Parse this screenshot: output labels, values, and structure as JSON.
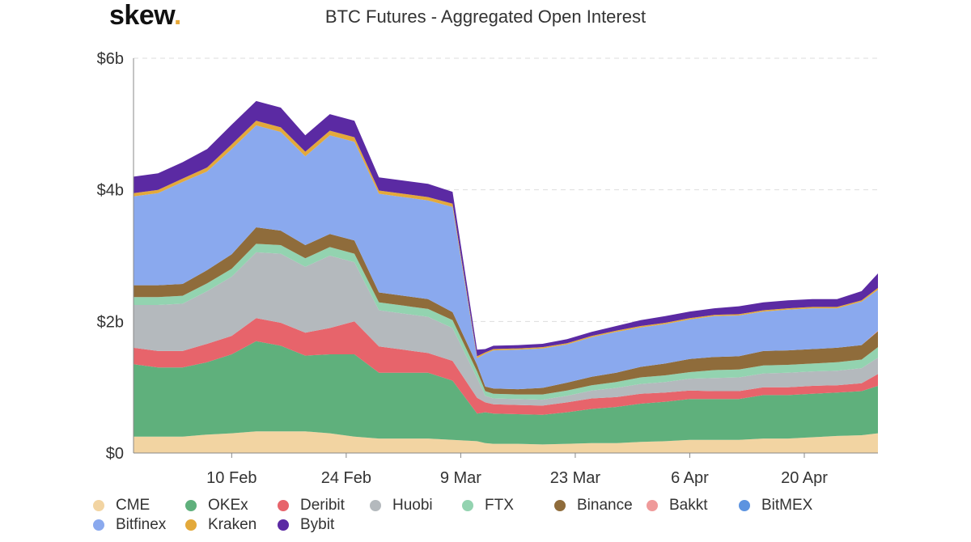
{
  "brand": {
    "name": "skew",
    "dot": "."
  },
  "chart_data": {
    "type": "area",
    "stacked": true,
    "title": "BTC Futures - Aggregated Open Interest",
    "xlabel": "",
    "ylabel": "",
    "y_ticks": [
      "$0",
      "$2b",
      "$4b",
      "$6b"
    ],
    "y_tick_values": [
      0,
      2,
      4,
      6
    ],
    "ylim": [
      0,
      6
    ],
    "y_unit": "billion USD",
    "x_ticks": [
      "10 Feb",
      "24 Feb",
      "9 Mar",
      "23 Mar",
      "6 Apr",
      "20 Apr"
    ],
    "x_tick_dates": [
      "2020-02-10",
      "2020-02-24",
      "2020-03-09",
      "2020-03-23",
      "2020-04-06",
      "2020-04-20"
    ],
    "grid": "horizontal dashed",
    "legend_position": "bottom",
    "x": [
      "2020-01-29",
      "2020-02-01",
      "2020-02-04",
      "2020-02-07",
      "2020-02-10",
      "2020-02-13",
      "2020-02-16",
      "2020-02-19",
      "2020-02-22",
      "2020-02-25",
      "2020-02-28",
      "2020-03-02",
      "2020-03-05",
      "2020-03-08",
      "2020-03-11",
      "2020-03-12",
      "2020-03-13",
      "2020-03-16",
      "2020-03-19",
      "2020-03-22",
      "2020-03-25",
      "2020-03-28",
      "2020-03-31",
      "2020-04-03",
      "2020-04-06",
      "2020-04-09",
      "2020-04-12",
      "2020-04-15",
      "2020-04-18",
      "2020-04-21",
      "2020-04-24",
      "2020-04-27",
      "2020-04-29"
    ],
    "series": [
      {
        "name": "CME",
        "color": "#f2d4a2",
        "values": [
          0.25,
          0.25,
          0.25,
          0.28,
          0.3,
          0.33,
          0.33,
          0.33,
          0.3,
          0.25,
          0.22,
          0.22,
          0.22,
          0.2,
          0.18,
          0.15,
          0.14,
          0.14,
          0.13,
          0.14,
          0.15,
          0.15,
          0.17,
          0.18,
          0.2,
          0.2,
          0.2,
          0.22,
          0.22,
          0.24,
          0.26,
          0.27,
          0.3
        ]
      },
      {
        "name": "OKEx",
        "color": "#5fb07c",
        "values": [
          1.1,
          1.05,
          1.05,
          1.1,
          1.2,
          1.37,
          1.3,
          1.15,
          1.2,
          1.25,
          1.0,
          1.0,
          1.0,
          0.9,
          0.42,
          0.47,
          0.46,
          0.45,
          0.45,
          0.48,
          0.52,
          0.55,
          0.58,
          0.6,
          0.62,
          0.62,
          0.62,
          0.66,
          0.66,
          0.66,
          0.66,
          0.67,
          0.72
        ]
      },
      {
        "name": "Deribit",
        "color": "#e7646b",
        "values": [
          0.25,
          0.25,
          0.25,
          0.28,
          0.28,
          0.35,
          0.35,
          0.35,
          0.4,
          0.5,
          0.4,
          0.35,
          0.3,
          0.3,
          0.24,
          0.15,
          0.14,
          0.14,
          0.14,
          0.15,
          0.16,
          0.15,
          0.15,
          0.14,
          0.13,
          0.12,
          0.12,
          0.12,
          0.12,
          0.12,
          0.11,
          0.12,
          0.18
        ]
      },
      {
        "name": "Huobi",
        "color": "#b4b9bd",
        "values": [
          0.65,
          0.7,
          0.72,
          0.8,
          0.9,
          1.0,
          1.05,
          1.0,
          1.1,
          0.9,
          0.55,
          0.55,
          0.55,
          0.5,
          0.3,
          0.1,
          0.09,
          0.09,
          0.09,
          0.1,
          0.12,
          0.14,
          0.15,
          0.16,
          0.18,
          0.2,
          0.21,
          0.21,
          0.22,
          0.22,
          0.22,
          0.23,
          0.25
        ]
      },
      {
        "name": "FTX",
        "color": "#93d3b0",
        "values": [
          0.12,
          0.12,
          0.12,
          0.12,
          0.12,
          0.13,
          0.13,
          0.13,
          0.13,
          0.13,
          0.12,
          0.12,
          0.12,
          0.12,
          0.1,
          0.07,
          0.07,
          0.07,
          0.08,
          0.08,
          0.08,
          0.09,
          0.1,
          0.1,
          0.1,
          0.12,
          0.12,
          0.12,
          0.12,
          0.12,
          0.13,
          0.13,
          0.16
        ]
      },
      {
        "name": "Binance",
        "color": "#8f6c3b",
        "values": [
          0.18,
          0.18,
          0.18,
          0.2,
          0.22,
          0.25,
          0.22,
          0.2,
          0.2,
          0.2,
          0.15,
          0.15,
          0.15,
          0.12,
          0.1,
          0.07,
          0.08,
          0.08,
          0.1,
          0.12,
          0.13,
          0.14,
          0.16,
          0.18,
          0.2,
          0.2,
          0.2,
          0.22,
          0.22,
          0.22,
          0.22,
          0.22,
          0.24
        ]
      },
      {
        "name": "Bakkt",
        "color": "#ef9a9a",
        "values": [
          0.0,
          0.0,
          0.0,
          0.0,
          0.0,
          0.0,
          0.0,
          0.0,
          0.0,
          0.0,
          0.0,
          0.0,
          0.0,
          0.0,
          0.0,
          0.0,
          0.0,
          0.0,
          0.0,
          0.0,
          0.0,
          0.0,
          0.0,
          0.0,
          0.0,
          0.0,
          0.0,
          0.0,
          0.0,
          0.0,
          0.0,
          0.0,
          0.01
        ]
      },
      {
        "name": "BitMEX",
        "color": "#5c93e0",
        "values": [
          0.0,
          0.0,
          0.0,
          0.0,
          0.0,
          0.0,
          0.0,
          0.0,
          0.0,
          0.0,
          0.0,
          0.0,
          0.0,
          0.0,
          0.0,
          0.0,
          0.0,
          0.0,
          0.0,
          0.0,
          0.0,
          0.0,
          0.0,
          0.0,
          0.0,
          0.0,
          0.0,
          0.0,
          0.0,
          0.0,
          0.0,
          0.0,
          0.0
        ]
      },
      {
        "name": "Bitfinex",
        "color": "#8aa9ee",
        "values": [
          1.35,
          1.4,
          1.55,
          1.5,
          1.6,
          1.55,
          1.5,
          1.35,
          1.5,
          1.5,
          1.5,
          1.5,
          1.5,
          1.6,
          0.1,
          0.5,
          0.58,
          0.6,
          0.6,
          0.58,
          0.6,
          0.62,
          0.6,
          0.6,
          0.6,
          0.62,
          0.62,
          0.6,
          0.62,
          0.62,
          0.6,
          0.66,
          0.62
        ]
      },
      {
        "name": "Kraken",
        "color": "#e3a93b",
        "values": [
          0.05,
          0.05,
          0.05,
          0.06,
          0.07,
          0.07,
          0.07,
          0.07,
          0.07,
          0.07,
          0.05,
          0.05,
          0.05,
          0.05,
          0.03,
          0.02,
          0.02,
          0.02,
          0.02,
          0.02,
          0.02,
          0.02,
          0.02,
          0.02,
          0.02,
          0.02,
          0.02,
          0.02,
          0.02,
          0.02,
          0.02,
          0.02,
          0.03
        ]
      },
      {
        "name": "Bybit",
        "color": "#5b2aa3",
        "values": [
          0.25,
          0.25,
          0.25,
          0.28,
          0.3,
          0.3,
          0.3,
          0.25,
          0.25,
          0.25,
          0.2,
          0.2,
          0.2,
          0.18,
          0.1,
          0.05,
          0.05,
          0.05,
          0.05,
          0.06,
          0.06,
          0.07,
          0.09,
          0.1,
          0.1,
          0.1,
          0.12,
          0.12,
          0.12,
          0.12,
          0.12,
          0.14,
          0.22
        ]
      }
    ]
  }
}
